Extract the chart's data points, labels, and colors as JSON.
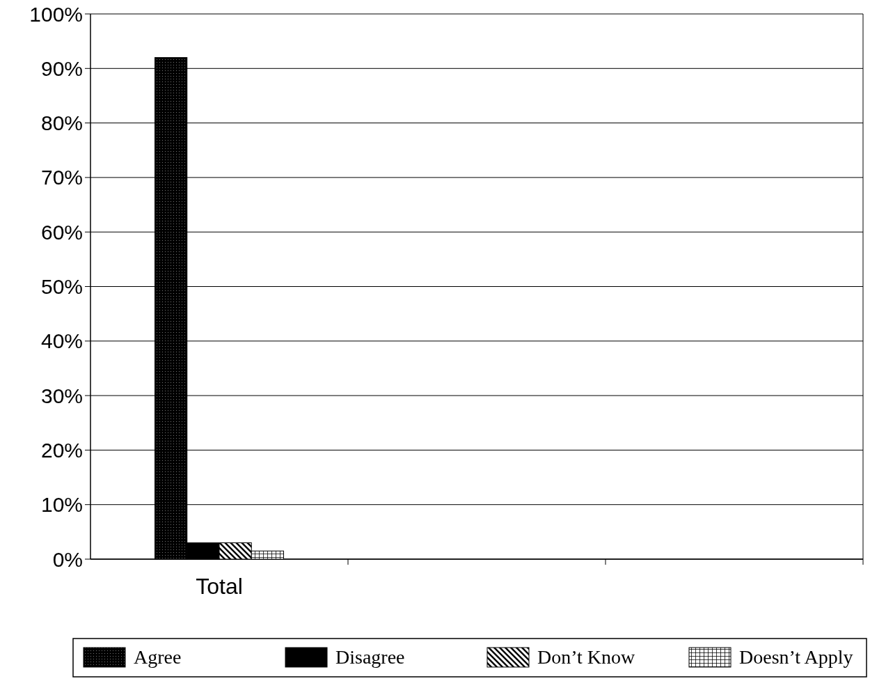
{
  "chart_data": {
    "type": "bar",
    "categories": [
      "Total",
      null,
      null
    ],
    "series": [
      {
        "name": "Agree",
        "color": "#000000",
        "values": [
          92,
          null,
          null
        ]
      },
      {
        "name": "Disagree",
        "color": "#000000",
        "values": [
          3,
          null,
          null
        ]
      },
      {
        "name": "Don’t Know",
        "color": "#000000",
        "values": [
          3,
          null,
          null
        ]
      },
      {
        "name": "Doesn’t Apply",
        "color": "#000000",
        "values": [
          1.5,
          null,
          null
        ]
      }
    ],
    "ylim": [
      0,
      100
    ],
    "yticks": [
      {
        "value": 0,
        "label": "0%"
      },
      {
        "value": 10,
        "label": "10%"
      },
      {
        "value": 20,
        "label": "20%"
      },
      {
        "value": 30,
        "label": "30%"
      },
      {
        "value": 40,
        "label": "40%"
      },
      {
        "value": 50,
        "label": "50%"
      },
      {
        "value": 60,
        "label": "60%"
      },
      {
        "value": 70,
        "label": "70%"
      },
      {
        "value": 80,
        "label": "80%"
      },
      {
        "value": 90,
        "label": "90%"
      },
      {
        "value": 100,
        "label": "100%"
      }
    ],
    "grid": "y",
    "legend": "bottom"
  }
}
